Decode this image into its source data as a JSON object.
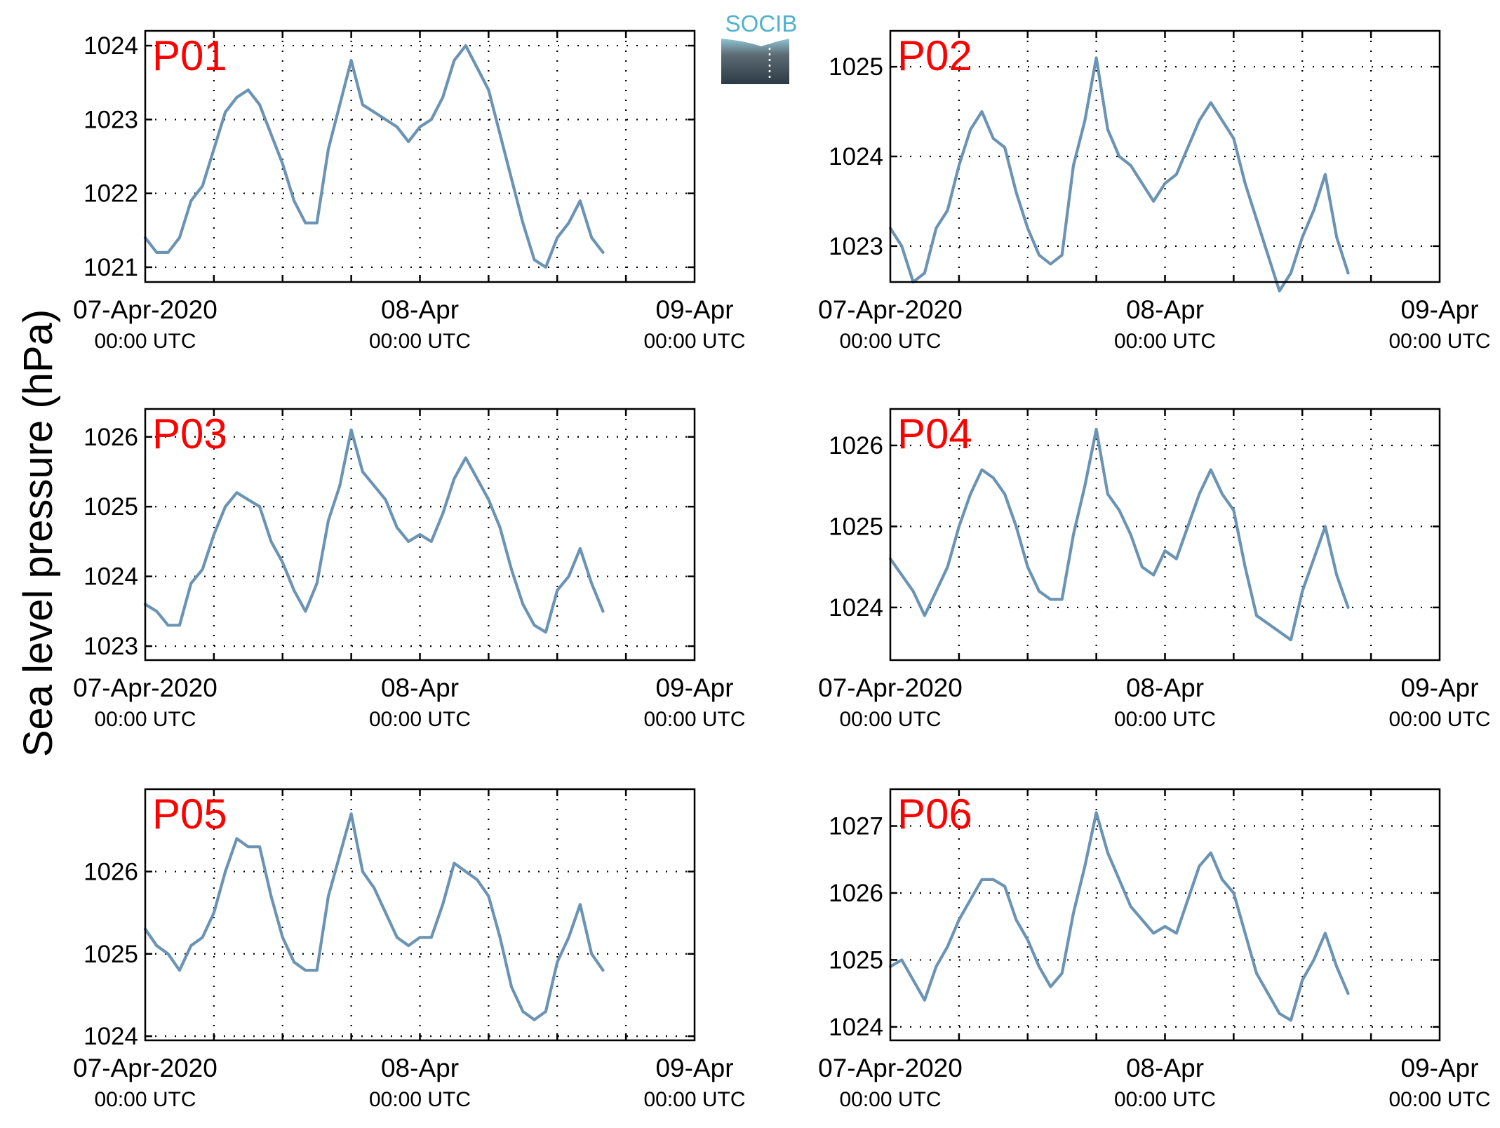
{
  "figure": {
    "ylabel": "Sea level pressure (hPa)",
    "logo_text": "SOCIB",
    "series_color": "#6b93b3",
    "label_color": "#ff0000"
  },
  "chart_data": [
    {
      "type": "line",
      "label": "P01",
      "x_start": "2020-04-07T00:00Z",
      "x_step_hours": 1,
      "xlim": [
        "2020-04-07T00:00Z",
        "2020-04-09T00:00Z"
      ],
      "xticks": [
        {
          "line1": "07-Apr-2020",
          "line2": "00:00 UTC"
        },
        {
          "line1": "08-Apr",
          "line2": "00:00 UTC"
        },
        {
          "line1": "09-Apr",
          "line2": "00:00 UTC"
        }
      ],
      "ylim": [
        1020.8,
        1024.2
      ],
      "yticks": [
        1021,
        1022,
        1023,
        1024
      ],
      "values": [
        1021.4,
        1021.2,
        1021.2,
        1021.4,
        1021.9,
        1022.1,
        1022.6,
        1023.1,
        1023.3,
        1023.4,
        1023.2,
        1022.8,
        1022.4,
        1021.9,
        1021.6,
        1021.6,
        1022.6,
        1023.2,
        1023.8,
        1023.2,
        1023.1,
        1023.0,
        1022.9,
        1022.7,
        1022.9,
        1023.0,
        1023.3,
        1023.8,
        1024.0,
        1023.7,
        1023.4,
        1022.8,
        1022.2,
        1021.6,
        1021.1,
        1021.0,
        1021.4,
        1021.6,
        1021.9,
        1021.4,
        1021.2
      ]
    },
    {
      "type": "line",
      "label": "P02",
      "x_start": "2020-04-07T00:00Z",
      "x_step_hours": 1,
      "xlim": [
        "2020-04-07T00:00Z",
        "2020-04-09T00:00Z"
      ],
      "xticks": [
        {
          "line1": "07-Apr-2020",
          "line2": "00:00 UTC"
        },
        {
          "line1": "08-Apr",
          "line2": "00:00 UTC"
        },
        {
          "line1": "09-Apr",
          "line2": "00:00 UTC"
        }
      ],
      "ylim": [
        1022.6,
        1025.4
      ],
      "yticks": [
        1023,
        1024,
        1025
      ],
      "values": [
        1023.2,
        1023.0,
        1022.6,
        1022.7,
        1023.2,
        1023.4,
        1023.9,
        1024.3,
        1024.5,
        1024.2,
        1024.1,
        1023.6,
        1023.2,
        1022.9,
        1022.8,
        1022.9,
        1023.9,
        1024.4,
        1025.1,
        1024.3,
        1024.0,
        1023.9,
        1023.7,
        1023.5,
        1023.7,
        1023.8,
        1024.1,
        1024.4,
        1024.6,
        1024.4,
        1024.2,
        1023.7,
        1023.3,
        1022.9,
        1022.5,
        1022.7,
        1023.1,
        1023.4,
        1023.8,
        1023.1,
        1022.7
      ]
    },
    {
      "type": "line",
      "label": "P03",
      "x_start": "2020-04-07T00:00Z",
      "x_step_hours": 1,
      "xlim": [
        "2020-04-07T00:00Z",
        "2020-04-09T00:00Z"
      ],
      "xticks": [
        {
          "line1": "07-Apr-2020",
          "line2": "00:00 UTC"
        },
        {
          "line1": "08-Apr",
          "line2": "00:00 UTC"
        },
        {
          "line1": "09-Apr",
          "line2": "00:00 UTC"
        }
      ],
      "ylim": [
        1022.8,
        1026.4
      ],
      "yticks": [
        1023,
        1024,
        1025,
        1026
      ],
      "values": [
        1023.6,
        1023.5,
        1023.3,
        1023.3,
        1023.9,
        1024.1,
        1024.6,
        1025.0,
        1025.2,
        1025.1,
        1025.0,
        1024.5,
        1024.2,
        1023.8,
        1023.5,
        1023.9,
        1024.8,
        1025.3,
        1026.1,
        1025.5,
        1025.3,
        1025.1,
        1024.7,
        1024.5,
        1024.6,
        1024.5,
        1024.9,
        1025.4,
        1025.7,
        1025.4,
        1025.1,
        1024.7,
        1024.1,
        1023.6,
        1023.3,
        1023.2,
        1023.8,
        1024.0,
        1024.4,
        1023.9,
        1023.5
      ]
    },
    {
      "type": "line",
      "label": "P04",
      "x_start": "2020-04-07T00:00Z",
      "x_step_hours": 1,
      "xlim": [
        "2020-04-07T00:00Z",
        "2020-04-09T00:00Z"
      ],
      "xticks": [
        {
          "line1": "07-Apr-2020",
          "line2": "00:00 UTC"
        },
        {
          "line1": "08-Apr",
          "line2": "00:00 UTC"
        },
        {
          "line1": "09-Apr",
          "line2": "00:00 UTC"
        }
      ],
      "ylim": [
        1023.35,
        1026.45
      ],
      "yticks": [
        1024,
        1025,
        1026
      ],
      "values": [
        1024.6,
        1024.4,
        1024.2,
        1023.9,
        1024.2,
        1024.5,
        1025.0,
        1025.4,
        1025.7,
        1025.6,
        1025.4,
        1025.0,
        1024.5,
        1024.2,
        1024.1,
        1024.1,
        1024.9,
        1025.5,
        1026.2,
        1025.4,
        1025.2,
        1024.9,
        1024.5,
        1024.4,
        1024.7,
        1024.6,
        1025.0,
        1025.4,
        1025.7,
        1025.4,
        1025.2,
        1024.5,
        1023.9,
        1023.8,
        1023.7,
        1023.6,
        1024.2,
        1024.6,
        1025.0,
        1024.4,
        1024.0
      ]
    },
    {
      "type": "line",
      "label": "P05",
      "x_start": "2020-04-07T00:00Z",
      "x_step_hours": 1,
      "xlim": [
        "2020-04-07T00:00Z",
        "2020-04-09T00:00Z"
      ],
      "xticks": [
        {
          "line1": "07-Apr-2020",
          "line2": "00:00 UTC"
        },
        {
          "line1": "08-Apr",
          "line2": "00:00 UTC"
        },
        {
          "line1": "09-Apr",
          "line2": "00:00 UTC"
        }
      ],
      "ylim": [
        1023.95,
        1027.0
      ],
      "yticks": [
        1024,
        1025,
        1026
      ],
      "values": [
        1025.3,
        1025.1,
        1025.0,
        1024.8,
        1025.1,
        1025.2,
        1025.5,
        1026.0,
        1026.4,
        1026.3,
        1026.3,
        1025.7,
        1025.2,
        1024.9,
        1024.8,
        1024.8,
        1025.7,
        1026.2,
        1026.7,
        1026.0,
        1025.8,
        1025.5,
        1025.2,
        1025.1,
        1025.2,
        1025.2,
        1025.6,
        1026.1,
        1026.0,
        1025.9,
        1025.7,
        1025.2,
        1024.6,
        1024.3,
        1024.2,
        1024.3,
        1024.9,
        1025.2,
        1025.6,
        1025.0,
        1024.8
      ]
    },
    {
      "type": "line",
      "label": "P06",
      "x_start": "2020-04-07T00:00Z",
      "x_step_hours": 1,
      "xlim": [
        "2020-04-07T00:00Z",
        "2020-04-09T00:00Z"
      ],
      "xticks": [
        {
          "line1": "07-Apr-2020",
          "line2": "00:00 UTC"
        },
        {
          "line1": "08-Apr",
          "line2": "00:00 UTC"
        },
        {
          "line1": "09-Apr",
          "line2": "00:00 UTC"
        }
      ],
      "ylim": [
        1023.8,
        1027.55
      ],
      "yticks": [
        1024,
        1025,
        1026,
        1027
      ],
      "values": [
        1024.9,
        1025.0,
        1024.7,
        1024.4,
        1024.9,
        1025.2,
        1025.6,
        1025.9,
        1026.2,
        1026.2,
        1026.1,
        1025.6,
        1025.3,
        1024.9,
        1024.6,
        1024.8,
        1025.7,
        1026.4,
        1027.2,
        1026.6,
        1026.2,
        1025.8,
        1025.6,
        1025.4,
        1025.5,
        1025.4,
        1025.9,
        1026.4,
        1026.6,
        1026.2,
        1026.0,
        1025.4,
        1024.8,
        1024.5,
        1024.2,
        1024.1,
        1024.7,
        1025.0,
        1025.4,
        1024.9,
        1024.5
      ]
    }
  ]
}
